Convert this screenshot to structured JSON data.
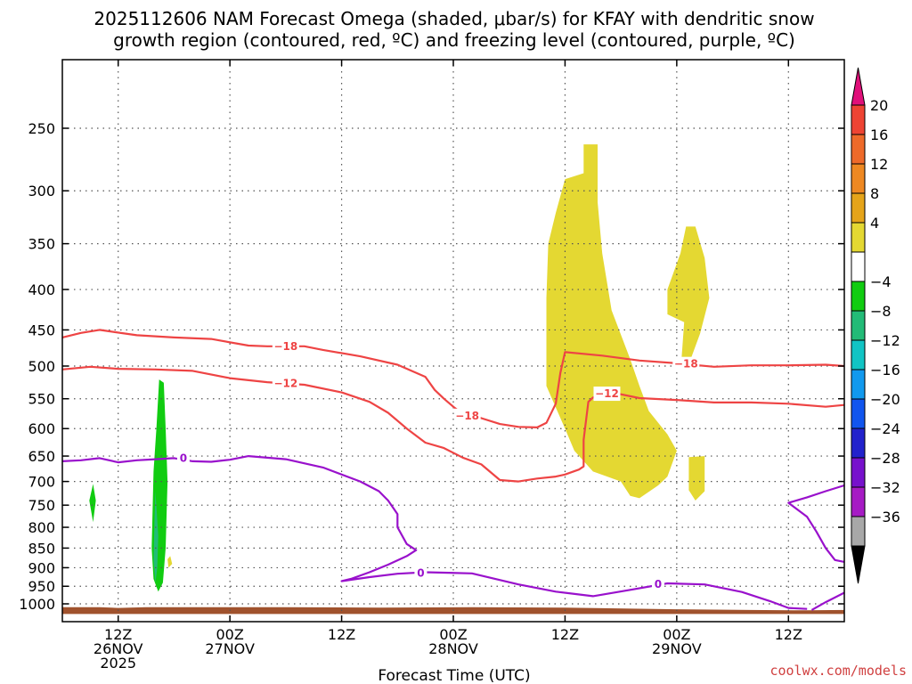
{
  "chart_data": {
    "type": "heatmap",
    "title_lines": [
      "2025112606 NAM Forecast Omega (shaded, μbar/s) for KFAY with dendritic snow",
      "growth region (contoured, red, ºC) and freezing level (contoured, purple, ºC)"
    ],
    "xlabel": "Forecast Time (UTC)",
    "credit": "coolwx.com/models",
    "x_ticks": [
      {
        "hour": 12,
        "line1": "12Z",
        "line2": "26NOV",
        "line3": "2025"
      },
      {
        "hour": 24,
        "line1": "00Z",
        "line2": "27NOV",
        "line3": ""
      },
      {
        "hour": 36,
        "line1": "12Z",
        "line2": "",
        "line3": ""
      },
      {
        "hour": 48,
        "line1": "00Z",
        "line2": "28NOV",
        "line3": ""
      },
      {
        "hour": 60,
        "line1": "12Z",
        "line2": "",
        "line3": ""
      },
      {
        "hour": 72,
        "line1": "00Z",
        "line2": "29NOV",
        "line3": ""
      },
      {
        "hour": 84,
        "line1": "12Z",
        "line2": "",
        "line3": ""
      }
    ],
    "y_ticks": [
      250,
      300,
      350,
      400,
      450,
      500,
      550,
      600,
      650,
      700,
      750,
      800,
      850,
      900,
      950,
      1000
    ],
    "xlim": [
      6,
      90
    ],
    "ylim_hpa": [
      1030,
      200
    ],
    "colorbar": {
      "labels": [
        "20",
        "16",
        "12",
        "8",
        "4",
        "−4",
        "−8",
        "−12",
        "−16",
        "−20",
        "−24",
        "−28",
        "−32",
        "−36"
      ],
      "top_arrow_color": "#e0107a",
      "bottom_arrow_color": "#000000",
      "colors": [
        "#ee4433",
        "#ee6a2a",
        "#ee8822",
        "#e5a41a",
        "#e4d832",
        "#ffffff",
        "#11cc11",
        "#22bb77",
        "#11c4c4",
        "#1199ee",
        "#1155ee",
        "#2222cc",
        "#7711cc",
        "#a61bc4",
        "#a8a8a8"
      ]
    },
    "contours": [
      {
        "name": "-18",
        "color": "#ee4444",
        "points": [
          [
            6,
            460
          ],
          [
            8,
            454
          ],
          [
            10,
            450
          ],
          [
            14,
            457
          ],
          [
            18,
            460
          ],
          [
            22,
            462
          ],
          [
            26,
            471
          ],
          [
            28,
            472
          ],
          [
            30,
            472
          ],
          [
            32,
            472
          ],
          [
            34,
            477
          ],
          [
            38,
            486
          ],
          [
            42,
            498
          ],
          [
            45,
            516
          ],
          [
            46,
            536
          ],
          [
            47,
            550
          ],
          [
            48,
            563
          ],
          [
            49,
            575
          ],
          [
            51,
            582
          ],
          [
            53,
            592
          ],
          [
            55,
            597
          ],
          [
            57,
            598
          ],
          [
            58,
            590
          ],
          [
            59,
            558
          ],
          [
            59.5,
            510
          ],
          [
            60,
            480
          ],
          [
            64,
            485
          ],
          [
            68,
            492
          ],
          [
            72,
            496
          ],
          [
            76,
            501
          ],
          [
            80,
            499
          ],
          [
            84,
            499
          ],
          [
            88,
            498
          ],
          [
            90,
            500
          ]
        ],
        "labels": [
          {
            "x": 30,
            "y": 472,
            "text": "−18"
          },
          {
            "x": 49.5,
            "y": 578,
            "text": "−18"
          },
          {
            "x": 73,
            "y": 497,
            "text": "−18"
          }
        ]
      },
      {
        "name": "-12",
        "color": "#ee4444",
        "points": [
          [
            6,
            505
          ],
          [
            9,
            501
          ],
          [
            12,
            504
          ],
          [
            16,
            505
          ],
          [
            20,
            507
          ],
          [
            24,
            518
          ],
          [
            28,
            524
          ],
          [
            32,
            528
          ],
          [
            36,
            540
          ],
          [
            39,
            555
          ],
          [
            41,
            573
          ],
          [
            43,
            600
          ],
          [
            45,
            625
          ],
          [
            47,
            635
          ],
          [
            49,
            653
          ],
          [
            51,
            666
          ],
          [
            53,
            697
          ],
          [
            55,
            700
          ],
          [
            57,
            694
          ],
          [
            59,
            690
          ],
          [
            60,
            686
          ],
          [
            61.5,
            676
          ],
          [
            62,
            670
          ],
          [
            62,
            620
          ],
          [
            62.5,
            555
          ],
          [
            63,
            548
          ],
          [
            65,
            540
          ],
          [
            68,
            549
          ],
          [
            72,
            552
          ],
          [
            76,
            556
          ],
          [
            80,
            556
          ],
          [
            84,
            558
          ],
          [
            88,
            563
          ],
          [
            90,
            560
          ]
        ],
        "labels": [
          {
            "x": 30,
            "y": 526,
            "text": "−12"
          },
          {
            "x": 64.5,
            "y": 542,
            "text": "−12"
          }
        ]
      },
      {
        "name": "0 upper",
        "color": "#9911cc",
        "points": [
          [
            6,
            660
          ],
          [
            8,
            658
          ],
          [
            10,
            654
          ],
          [
            12,
            662
          ],
          [
            14,
            658
          ],
          [
            16,
            656
          ],
          [
            18,
            654
          ],
          [
            20,
            660
          ],
          [
            22,
            661
          ],
          [
            24,
            657
          ],
          [
            26,
            650
          ],
          [
            30,
            656
          ],
          [
            34,
            672
          ],
          [
            38,
            700
          ],
          [
            40,
            720
          ],
          [
            41,
            740
          ],
          [
            42,
            770
          ],
          [
            42,
            800
          ],
          [
            43,
            840
          ],
          [
            44,
            855
          ],
          [
            43,
            870
          ],
          [
            41,
            892
          ],
          [
            39,
            912
          ],
          [
            37,
            930
          ],
          [
            36,
            936
          ],
          [
            39,
            925
          ],
          [
            42,
            916
          ],
          [
            45,
            912
          ],
          [
            50,
            915
          ],
          [
            55,
            945
          ],
          [
            59,
            965
          ],
          [
            63,
            978
          ],
          [
            67,
            960
          ],
          [
            71,
            942
          ],
          [
            75,
            945
          ],
          [
            79,
            966
          ],
          [
            82,
            992
          ],
          [
            84,
            1012
          ],
          [
            86,
            1015
          ]
        ],
        "labels": [
          {
            "x": 19,
            "y": 654,
            "text": "0"
          },
          {
            "x": 44.5,
            "y": 914,
            "text": "0"
          },
          {
            "x": 70,
            "y": 944,
            "text": "0"
          }
        ]
      },
      {
        "name": "0 right-upper",
        "color": "#9911cc",
        "points": [
          [
            90,
            708
          ],
          [
            88,
            720
          ],
          [
            86,
            733
          ],
          [
            84,
            745
          ],
          [
            86,
            776
          ],
          [
            87,
            810
          ],
          [
            88,
            850
          ],
          [
            89,
            880
          ],
          [
            90,
            885
          ]
        ],
        "labels": []
      },
      {
        "name": "0 right-lower",
        "color": "#9911cc",
        "points": [
          [
            86.5,
            1018
          ],
          [
            88,
            995
          ],
          [
            90,
            968
          ]
        ],
        "labels": []
      }
    ],
    "shaded_regions": [
      {
        "name": "yellow-main",
        "color": "#e4d832",
        "points": [
          [
            58,
            410
          ],
          [
            58.2,
            350
          ],
          [
            59,
            320
          ],
          [
            60,
            290
          ],
          [
            62,
            285
          ],
          [
            62,
            262
          ],
          [
            63.5,
            262
          ],
          [
            63.5,
            310
          ],
          [
            64,
            360
          ],
          [
            65,
            425
          ],
          [
            67,
            490
          ],
          [
            68,
            530
          ],
          [
            69,
            570
          ],
          [
            71,
            610
          ],
          [
            72,
            640
          ],
          [
            71,
            690
          ],
          [
            70,
            708
          ],
          [
            68,
            735
          ],
          [
            67,
            730
          ],
          [
            66,
            700
          ],
          [
            63,
            680
          ],
          [
            61,
            640
          ],
          [
            60,
            600
          ],
          [
            58,
            530
          ],
          [
            58,
            460
          ]
        ]
      },
      {
        "name": "yellow-right",
        "color": "#e4d832",
        "points": [
          [
            71,
            400
          ],
          [
            72.4,
            360
          ],
          [
            73,
            333
          ],
          [
            74,
            333
          ],
          [
            75,
            365
          ],
          [
            75.5,
            410
          ],
          [
            74.5,
            455
          ],
          [
            73.5,
            490
          ],
          [
            72.5,
            492
          ],
          [
            72.8,
            440
          ],
          [
            71,
            430
          ]
        ]
      },
      {
        "name": "yellow-blob",
        "color": "#e4d832",
        "points": [
          [
            73.3,
            652
          ],
          [
            75,
            650
          ],
          [
            75,
            720
          ],
          [
            74,
            740
          ],
          [
            73.3,
            718
          ]
        ]
      },
      {
        "name": "green-column",
        "color": "#11cc11",
        "points": [
          [
            15.8,
            680
          ],
          [
            16.1,
            600
          ],
          [
            16.4,
            520
          ],
          [
            16.9,
            525
          ],
          [
            17.1,
            600
          ],
          [
            17.3,
            700
          ],
          [
            17.1,
            850
          ],
          [
            16.8,
            940
          ],
          [
            16.3,
            965
          ],
          [
            15.8,
            930
          ],
          [
            15.6,
            850
          ]
        ]
      },
      {
        "name": "teal-column",
        "color": "#22bb77",
        "points": [
          [
            15.9,
            780
          ],
          [
            16.0,
            720
          ],
          [
            16.3,
            820
          ],
          [
            16.2,
            900
          ],
          [
            16.0,
            940
          ],
          [
            15.8,
            880
          ]
        ]
      },
      {
        "name": "green-small",
        "color": "#11cc11",
        "points": [
          [
            8.9,
            740
          ],
          [
            9.3,
            705
          ],
          [
            9.6,
            740
          ],
          [
            9.3,
            788
          ]
        ]
      },
      {
        "name": "yellow-dot",
        "color": "#e4d832",
        "points": [
          [
            17.3,
            878
          ],
          [
            17.6,
            870
          ],
          [
            17.8,
            890
          ],
          [
            17.4,
            900
          ]
        ]
      },
      {
        "name": "terrain",
        "color": "#a0522d",
        "points": [
          [
            6,
            1030
          ],
          [
            6,
            1010
          ],
          [
            10,
            1010
          ],
          [
            12,
            1012
          ],
          [
            15,
            1010
          ],
          [
            20,
            1010
          ],
          [
            30,
            1010
          ],
          [
            40,
            1011
          ],
          [
            50,
            1010
          ],
          [
            60,
            1011
          ],
          [
            72,
            1016
          ],
          [
            80,
            1018
          ],
          [
            86,
            1019
          ],
          [
            90,
            1018
          ],
          [
            90,
            1030
          ]
        ]
      }
    ]
  }
}
